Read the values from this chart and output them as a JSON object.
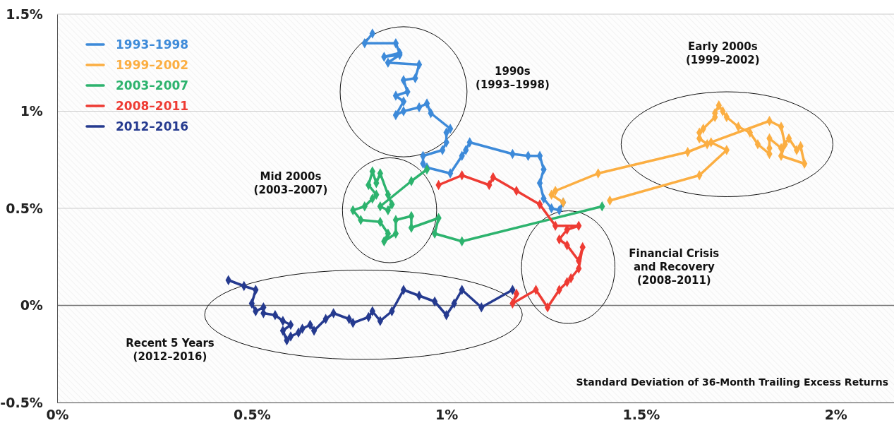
{
  "chart_data": {
    "type": "line",
    "xlabel": "Standard Deviation of 36-Month Trailing Excess Returns",
    "xlim": [
      0,
      2.15
    ],
    "ylim": [
      -0.5,
      1.5
    ],
    "xticks": [
      {
        "value": 0,
        "label": "0%"
      },
      {
        "value": 0.5,
        "label": "0.5%"
      },
      {
        "value": 1,
        "label": "1%"
      },
      {
        "value": 1.5,
        "label": "1.5%"
      },
      {
        "value": 2,
        "label": "2%"
      }
    ],
    "yticks": [
      {
        "value": -0.5,
        "label": "-0.5%"
      },
      {
        "value": 0,
        "label": "0%"
      },
      {
        "value": 0.5,
        "label": "0.5%"
      },
      {
        "value": 1,
        "label": "1%"
      },
      {
        "value": 1.5,
        "label": "1.5%"
      }
    ],
    "grid": "y",
    "legend": "top left",
    "marker": "diamond",
    "line_style": "solid",
    "series": [
      {
        "name": "1993–1998",
        "color": "#3d8ad9",
        "x": [
          0.81,
          0.79,
          0.87,
          0.88,
          0.84,
          0.88,
          0.85,
          0.93,
          0.92,
          0.89,
          0.9,
          0.87,
          0.89,
          0.87,
          0.89,
          0.93,
          0.95,
          0.96,
          1.01,
          1.0,
          1.0,
          0.99,
          0.94,
          0.94,
          0.95,
          1.01,
          1.04,
          1.05,
          1.06,
          1.17,
          1.21,
          1.24,
          1.25,
          1.24,
          1.25,
          1.27,
          1.29,
          1.3
        ],
        "values": [
          1.4,
          1.35,
          1.35,
          1.3,
          1.28,
          1.29,
          1.25,
          1.24,
          1.17,
          1.16,
          1.1,
          1.08,
          1.05,
          0.98,
          1.0,
          1.02,
          1.04,
          0.99,
          0.91,
          0.89,
          0.84,
          0.8,
          0.77,
          0.73,
          0.71,
          0.68,
          0.77,
          0.8,
          0.84,
          0.78,
          0.77,
          0.77,
          0.7,
          0.63,
          0.55,
          0.5,
          0.49,
          0.53
        ]
      },
      {
        "name": "1999–2002",
        "color": "#fbae42",
        "x": [
          1.3,
          1.27,
          1.28,
          1.39,
          1.62,
          1.67,
          1.65,
          1.65,
          1.66,
          1.69,
          1.69,
          1.7,
          1.71,
          1.72,
          1.75,
          1.78,
          1.8,
          1.83,
          1.83,
          1.83,
          1.86,
          1.88,
          1.9,
          1.91,
          1.92,
          1.86,
          1.87,
          1.86,
          1.83,
          1.68,
          1.72,
          1.65,
          1.42
        ],
        "values": [
          0.53,
          0.57,
          0.59,
          0.68,
          0.79,
          0.83,
          0.86,
          0.89,
          0.91,
          0.97,
          0.99,
          1.03,
          1.0,
          0.97,
          0.92,
          0.89,
          0.83,
          0.78,
          0.81,
          0.86,
          0.81,
          0.86,
          0.8,
          0.82,
          0.73,
          0.77,
          0.83,
          0.92,
          0.95,
          0.84,
          0.8,
          0.67,
          0.54
        ]
      },
      {
        "name": "2003–2007",
        "color": "#2db36e",
        "x": [
          1.4,
          1.04,
          0.97,
          0.98,
          0.91,
          0.91,
          0.87,
          0.87,
          0.84,
          0.85,
          0.83,
          0.78,
          0.76,
          0.79,
          0.81,
          0.82,
          0.8,
          0.81,
          0.82,
          0.83,
          0.85,
          0.86,
          0.85,
          0.83,
          0.91,
          0.95
        ],
        "values": [
          0.51,
          0.33,
          0.37,
          0.45,
          0.4,
          0.46,
          0.44,
          0.37,
          0.33,
          0.37,
          0.43,
          0.44,
          0.49,
          0.51,
          0.55,
          0.57,
          0.62,
          0.69,
          0.63,
          0.68,
          0.57,
          0.52,
          0.49,
          0.51,
          0.64,
          0.7
        ]
      },
      {
        "name": "2008–2011",
        "color": "#ee3b33",
        "x": [
          0.98,
          1.04,
          1.11,
          1.12,
          1.18,
          1.24,
          1.28,
          1.34,
          1.31,
          1.29,
          1.31,
          1.34,
          1.35,
          1.34,
          1.32,
          1.31,
          1.29,
          1.26,
          1.23,
          1.17,
          1.18
        ],
        "values": [
          0.62,
          0.67,
          0.62,
          0.66,
          0.59,
          0.52,
          0.41,
          0.41,
          0.39,
          0.34,
          0.31,
          0.23,
          0.3,
          0.19,
          0.14,
          0.12,
          0.08,
          -0.01,
          0.08,
          0.01,
          0.06
        ]
      },
      {
        "name": "2012–2016",
        "color": "#253a8f",
        "x": [
          1.17,
          1.09,
          1.04,
          1.02,
          1.0,
          0.97,
          0.93,
          0.89,
          0.86,
          0.83,
          0.81,
          0.8,
          0.76,
          0.75,
          0.71,
          0.69,
          0.66,
          0.65,
          0.63,
          0.62,
          0.6,
          0.59,
          0.58,
          0.6,
          0.58,
          0.56,
          0.53,
          0.53,
          0.51,
          0.5,
          0.51,
          0.48,
          0.44
        ],
        "values": [
          0.08,
          -0.01,
          0.08,
          0.01,
          -0.05,
          0.02,
          0.05,
          0.08,
          -0.03,
          -0.08,
          -0.03,
          -0.06,
          -0.09,
          -0.07,
          -0.04,
          -0.07,
          -0.13,
          -0.1,
          -0.12,
          -0.14,
          -0.16,
          -0.18,
          -0.13,
          -0.1,
          -0.08,
          -0.05,
          -0.04,
          -0.01,
          -0.03,
          0.01,
          0.08,
          0.1,
          0.13
        ]
      }
    ],
    "annotations": [
      "1990s\n(1993–1998)",
      "Early 2000s\n(1999–2002)",
      "Mid 2000s\n(2003–2007)",
      "Financial Crisis\nand Recovery\n(2008–2011)",
      "Recent 5 Years\n(2012–2016)"
    ]
  }
}
